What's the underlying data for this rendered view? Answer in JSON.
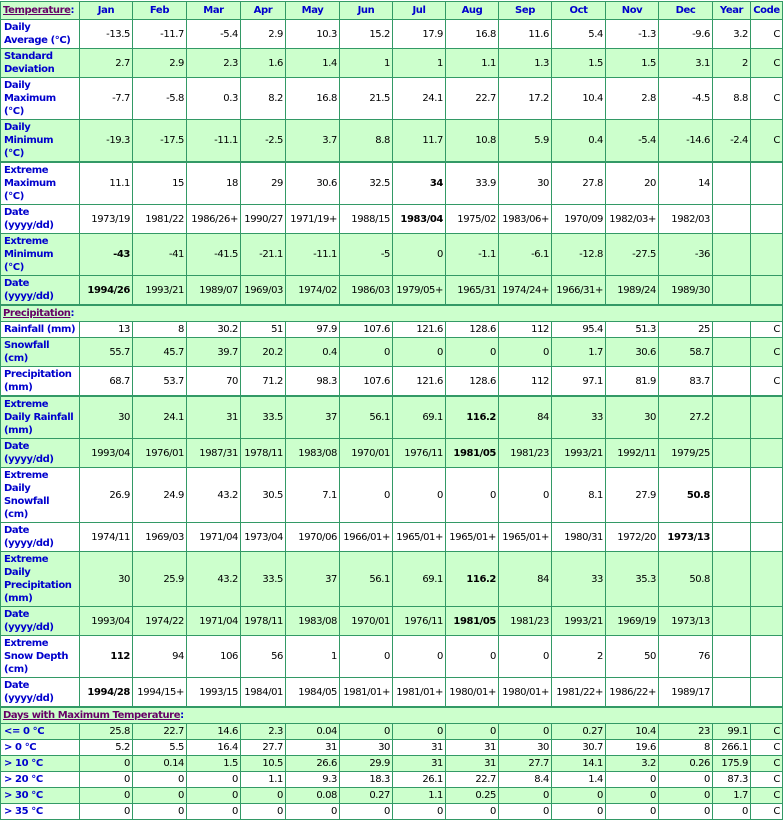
{
  "header": {
    "section": "Temperature",
    "columns": [
      "Jan",
      "Feb",
      "Mar",
      "Apr",
      "May",
      "Jun",
      "Jul",
      "Aug",
      "Sep",
      "Oct",
      "Nov",
      "Dec",
      "Year",
      "Code"
    ]
  },
  "colors": {
    "border": "#339966",
    "shade": "#ccffcc",
    "label": "#0000cc",
    "section": "#660066"
  },
  "groups": [
    {
      "section": null,
      "rows": [
        {
          "label": "Daily Average (°C)",
          "shade": false,
          "values": [
            "-13.5",
            "-11.7",
            "-5.4",
            "2.9",
            "10.3",
            "15.2",
            "17.9",
            "16.8",
            "11.6",
            "5.4",
            "-1.3",
            "-9.6",
            "3.2",
            "C"
          ],
          "bold": []
        },
        {
          "label": "Standard Deviation",
          "shade": true,
          "values": [
            "2.7",
            "2.9",
            "2.3",
            "1.6",
            "1.4",
            "1",
            "1",
            "1.1",
            "1.3",
            "1.5",
            "1.5",
            "3.1",
            "2",
            "C"
          ],
          "bold": []
        },
        {
          "label": "Daily Maximum (°C)",
          "shade": false,
          "values": [
            "-7.7",
            "-5.8",
            "0.3",
            "8.2",
            "16.8",
            "21.5",
            "24.1",
            "22.7",
            "17.2",
            "10.4",
            "2.8",
            "-4.5",
            "8.8",
            "C"
          ],
          "bold": []
        },
        {
          "label": "Daily Minimum (°C)",
          "shade": true,
          "values": [
            "-19.3",
            "-17.5",
            "-11.1",
            "-2.5",
            "3.7",
            "8.8",
            "11.7",
            "10.8",
            "5.9",
            "0.4",
            "-5.4",
            "-14.6",
            "-2.4",
            "C"
          ],
          "bold": []
        },
        {
          "label": "Extreme Maximum (°C)",
          "shade": false,
          "sep": true,
          "values": [
            "11.1",
            "15",
            "18",
            "29",
            "30.6",
            "32.5",
            "34",
            "33.9",
            "30",
            "27.8",
            "20",
            "14",
            "",
            ""
          ],
          "bold": [
            6
          ]
        },
        {
          "label": "Date (yyyy/dd)",
          "shade": false,
          "values": [
            "1973/19",
            "1981/22",
            "1986/26+",
            "1990/27",
            "1971/19+",
            "1988/15",
            "1983/04",
            "1975/02",
            "1983/06+",
            "1970/09",
            "1982/03+",
            "1982/03",
            "",
            ""
          ],
          "bold": [
            6
          ]
        },
        {
          "label": "Extreme Minimum (°C)",
          "shade": true,
          "values": [
            "-43",
            "-41",
            "-41.5",
            "-21.1",
            "-11.1",
            "-5",
            "0",
            "-1.1",
            "-6.1",
            "-12.8",
            "-27.5",
            "-36",
            "",
            ""
          ],
          "bold": [
            0
          ]
        },
        {
          "label": "Date (yyyy/dd)",
          "shade": true,
          "values": [
            "1994/26",
            "1993/21",
            "1989/07",
            "1969/03",
            "1974/02",
            "1986/03",
            "1979/05+",
            "1965/31",
            "1974/24+",
            "1966/31+",
            "1989/24",
            "1989/30",
            "",
            ""
          ],
          "bold": [
            0
          ]
        }
      ]
    },
    {
      "section": "Precipitation",
      "rows": [
        {
          "label": "Rainfall (mm)",
          "shade": false,
          "values": [
            "13",
            "8",
            "30.2",
            "51",
            "97.9",
            "107.6",
            "121.6",
            "128.6",
            "112",
            "95.4",
            "51.3",
            "25",
            "",
            "C"
          ],
          "bold": []
        },
        {
          "label": "Snowfall (cm)",
          "shade": true,
          "values": [
            "55.7",
            "45.7",
            "39.7",
            "20.2",
            "0.4",
            "0",
            "0",
            "0",
            "0",
            "1.7",
            "30.6",
            "58.7",
            "",
            "C"
          ],
          "bold": []
        },
        {
          "label": "Precipitation (mm)",
          "shade": false,
          "values": [
            "68.7",
            "53.7",
            "70",
            "71.2",
            "98.3",
            "107.6",
            "121.6",
            "128.6",
            "112",
            "97.1",
            "81.9",
            "83.7",
            "",
            "C"
          ],
          "bold": []
        },
        {
          "label": "Extreme Daily Rainfall (mm)",
          "shade": true,
          "sep": true,
          "values": [
            "30",
            "24.1",
            "31",
            "33.5",
            "37",
            "56.1",
            "69.1",
            "116.2",
            "84",
            "33",
            "30",
            "27.2",
            "",
            ""
          ],
          "bold": [
            7
          ]
        },
        {
          "label": "Date (yyyy/dd)",
          "shade": true,
          "values": [
            "1993/04",
            "1976/01",
            "1987/31",
            "1978/11",
            "1983/08",
            "1970/01",
            "1976/11",
            "1981/05",
            "1981/23",
            "1993/21",
            "1992/11",
            "1979/25",
            "",
            ""
          ],
          "bold": [
            7
          ]
        },
        {
          "label": "Extreme Daily Snowfall (cm)",
          "shade": false,
          "values": [
            "26.9",
            "24.9",
            "43.2",
            "30.5",
            "7.1",
            "0",
            "0",
            "0",
            "0",
            "8.1",
            "27.9",
            "50.8",
            "",
            ""
          ],
          "bold": [
            11
          ]
        },
        {
          "label": "Date (yyyy/dd)",
          "shade": false,
          "values": [
            "1974/11",
            "1969/03",
            "1971/04",
            "1973/04",
            "1970/06",
            "1966/01+",
            "1965/01+",
            "1965/01+",
            "1965/01+",
            "1980/31",
            "1972/20",
            "1973/13",
            "",
            ""
          ],
          "bold": [
            11
          ]
        },
        {
          "label": "Extreme Daily Precipitation (mm)",
          "shade": true,
          "values": [
            "30",
            "25.9",
            "43.2",
            "33.5",
            "37",
            "56.1",
            "69.1",
            "116.2",
            "84",
            "33",
            "35.3",
            "50.8",
            "",
            ""
          ],
          "bold": [
            7
          ]
        },
        {
          "label": "Date (yyyy/dd)",
          "shade": true,
          "values": [
            "1993/04",
            "1974/22",
            "1971/04",
            "1978/11",
            "1983/08",
            "1970/01",
            "1976/11",
            "1981/05",
            "1981/23",
            "1993/21",
            "1969/19",
            "1973/13",
            "",
            ""
          ],
          "bold": [
            7
          ]
        },
        {
          "label": "Extreme Snow Depth (cm)",
          "shade": false,
          "values": [
            "112",
            "94",
            "106",
            "56",
            "1",
            "0",
            "0",
            "0",
            "0",
            "2",
            "50",
            "76",
            "",
            ""
          ],
          "bold": [
            0
          ]
        },
        {
          "label": "Date (yyyy/dd)",
          "shade": false,
          "values": [
            "1994/28",
            "1994/15+",
            "1993/15",
            "1984/01",
            "1984/05",
            "1981/01+",
            "1981/01+",
            "1980/01+",
            "1980/01+",
            "1981/22+",
            "1986/22+",
            "1989/17",
            "",
            ""
          ],
          "bold": [
            0
          ]
        }
      ]
    },
    {
      "section": "Days with Maximum Temperature",
      "rows": [
        {
          "label": "<= 0 °C",
          "shade": true,
          "values": [
            "25.8",
            "22.7",
            "14.6",
            "2.3",
            "0.04",
            "0",
            "0",
            "0",
            "0",
            "0.27",
            "10.4",
            "23",
            "99.1",
            "C"
          ],
          "bold": []
        },
        {
          "label": "> 0 °C",
          "shade": false,
          "values": [
            "5.2",
            "5.5",
            "16.4",
            "27.7",
            "31",
            "30",
            "31",
            "31",
            "30",
            "30.7",
            "19.6",
            "8",
            "266.1",
            "C"
          ],
          "bold": []
        },
        {
          "label": "> 10 °C",
          "shade": true,
          "values": [
            "0",
            "0.14",
            "1.5",
            "10.5",
            "26.6",
            "29.9",
            "31",
            "31",
            "27.7",
            "14.1",
            "3.2",
            "0.26",
            "175.9",
            "C"
          ],
          "bold": []
        },
        {
          "label": "> 20 °C",
          "shade": false,
          "values": [
            "0",
            "0",
            "0",
            "1.1",
            "9.3",
            "18.3",
            "26.1",
            "22.7",
            "8.4",
            "1.4",
            "0",
            "0",
            "87.3",
            "C"
          ],
          "bold": []
        },
        {
          "label": "> 30 °C",
          "shade": true,
          "values": [
            "0",
            "0",
            "0",
            "0",
            "0.08",
            "0.27",
            "1.1",
            "0.25",
            "0",
            "0",
            "0",
            "0",
            "1.7",
            "C"
          ],
          "bold": []
        },
        {
          "label": "> 35 °C",
          "shade": false,
          "values": [
            "0",
            "0",
            "0",
            "0",
            "0",
            "0",
            "0",
            "0",
            "0",
            "0",
            "0",
            "0",
            "0",
            "C"
          ],
          "bold": []
        }
      ]
    }
  ]
}
